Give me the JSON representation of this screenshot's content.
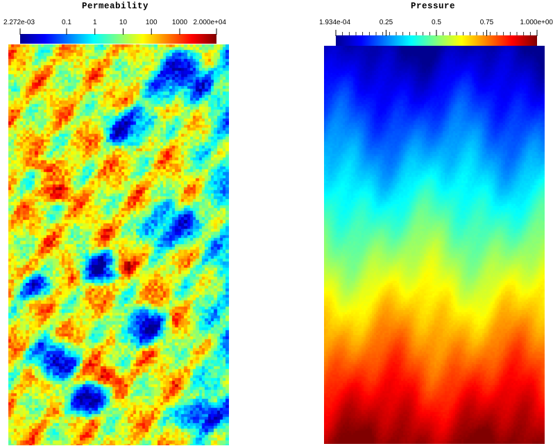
{
  "permeability": {
    "title": "Permeability",
    "colorbar": {
      "scale": "log",
      "min_label": "2.272e-03",
      "max_label": "2.000e+04",
      "tick_labels": [
        "2.272e-03",
        "0.1",
        "1",
        "10",
        "100",
        "1000",
        "2.000e+04"
      ],
      "tick_values": [
        0.002272,
        0.1,
        1,
        10,
        100,
        1000,
        20000
      ],
      "colormap": [
        "#00008f",
        "#0000ff",
        "#0080ff",
        "#00ffff",
        "#80ff80",
        "#ffff00",
        "#ff8000",
        "#ff0000",
        "#800000"
      ]
    },
    "field_description_colors": {
      "dominant": [
        "#e8731e",
        "#f0a030",
        "#d24a1a",
        "#2a7fd6"
      ]
    }
  },
  "pressure": {
    "title": "Pressure",
    "colorbar": {
      "scale": "linear",
      "min_label": "1.934e-04",
      "max_label": "1.000e+00",
      "tick_labels": [
        "1.934e-04",
        "0.25",
        "0.5",
        "0.75",
        "1.000e+00"
      ],
      "tick_values": [
        0.0001934,
        0.25,
        0.5,
        0.75,
        1.0
      ],
      "colormap": [
        "#00008f",
        "#0000ff",
        "#0080ff",
        "#00ffff",
        "#80ff80",
        "#ffff00",
        "#ff8000",
        "#ff0000",
        "#800000"
      ]
    },
    "field": {
      "top_value": 0.0,
      "bottom_value": 1.0
    }
  }
}
